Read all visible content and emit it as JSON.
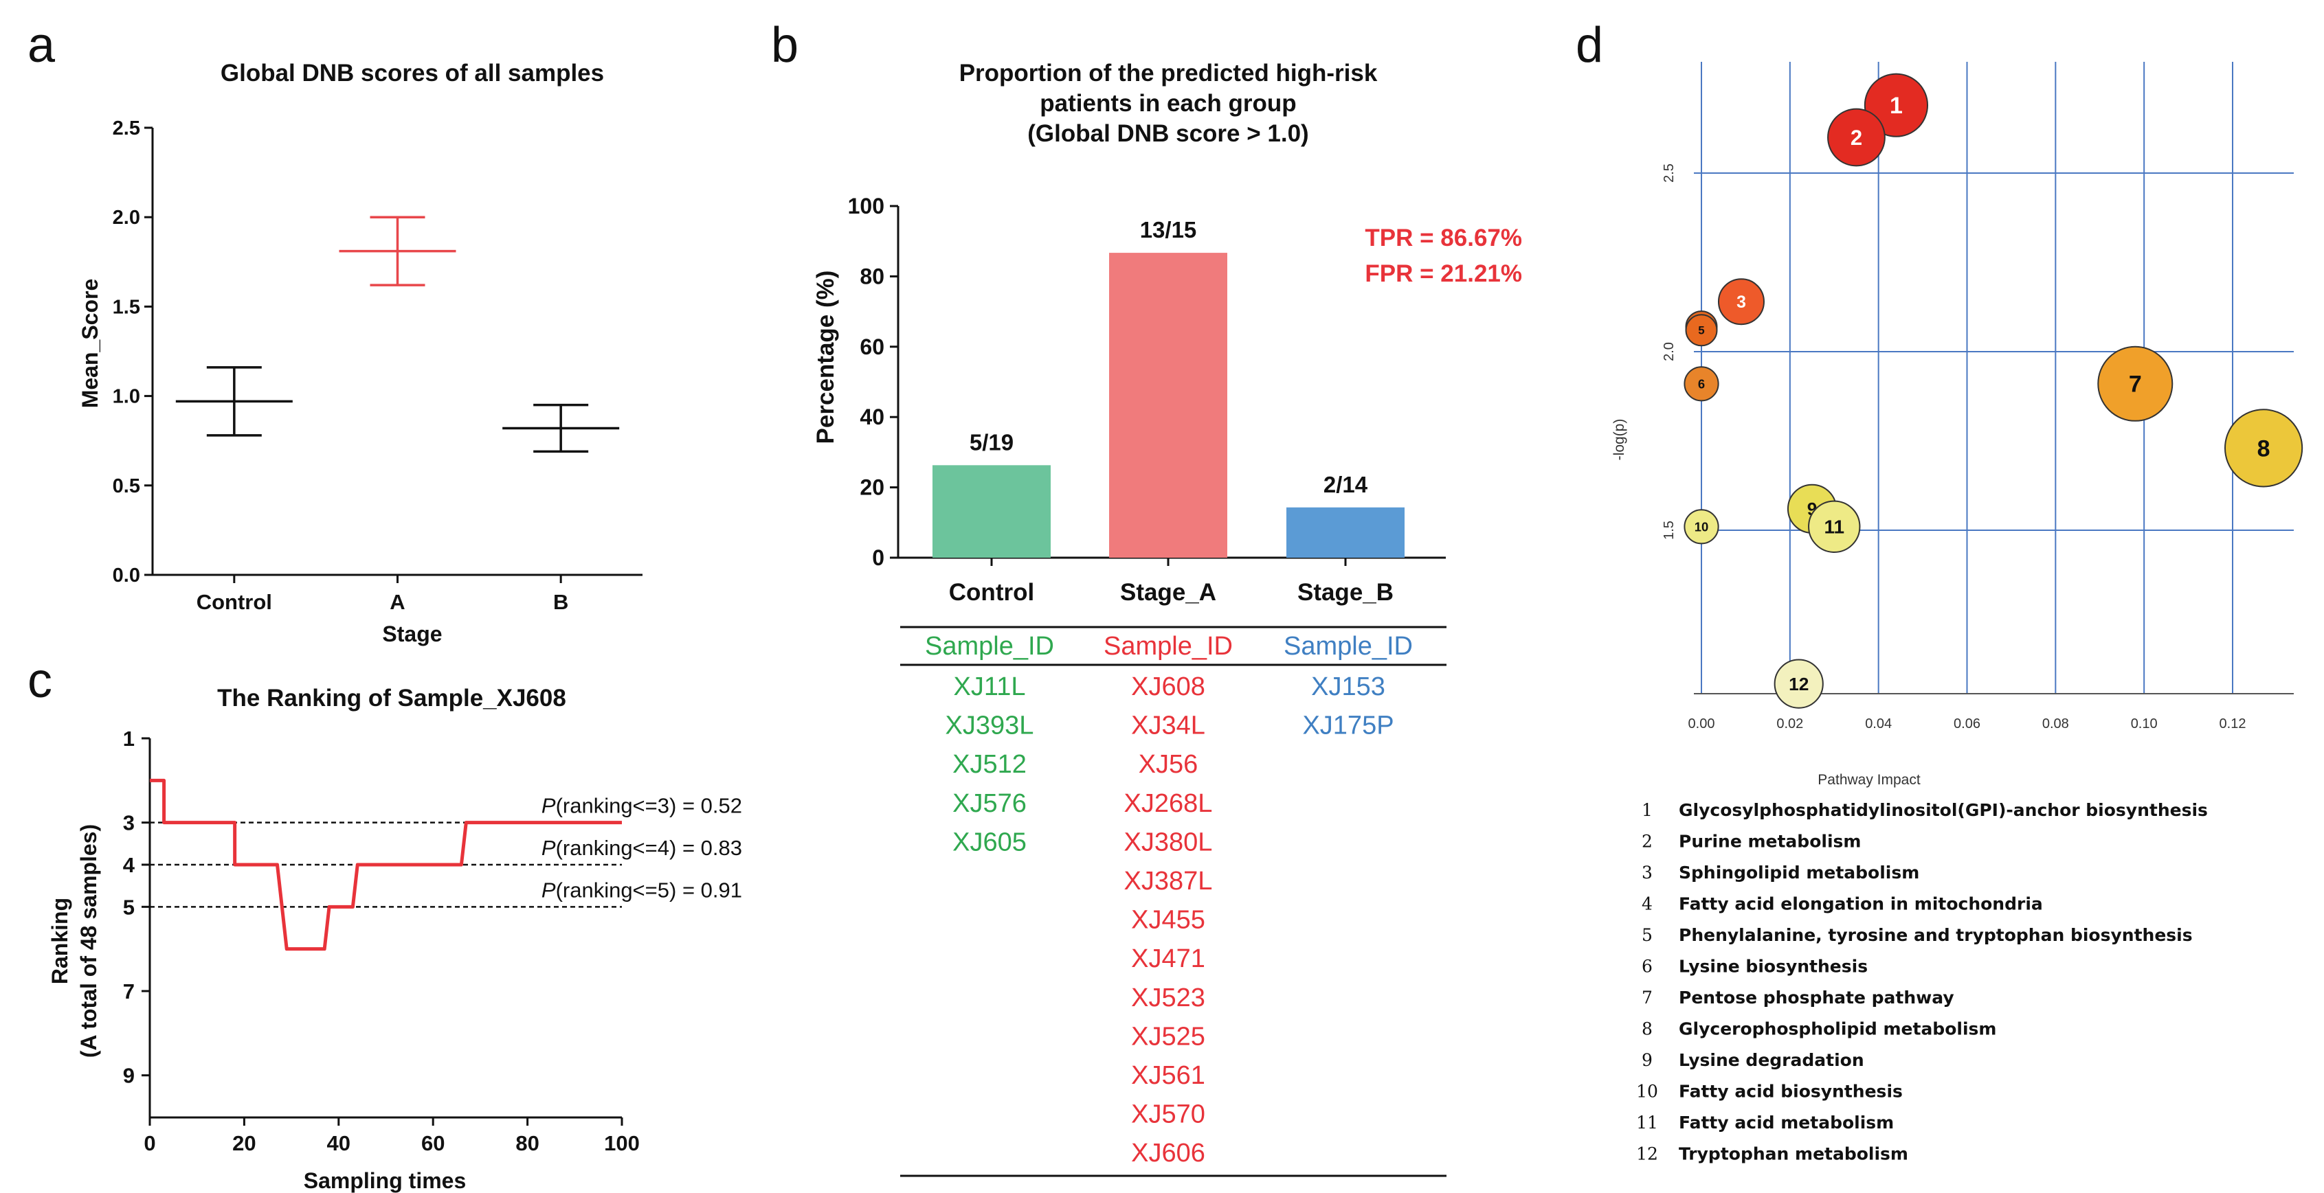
{
  "panel_labels": {
    "a": "a",
    "b": "b",
    "c": "c",
    "d": "d"
  },
  "chart_data": [
    {
      "id": "a",
      "type": "scatter",
      "title": "Global DNB scores of all samples",
      "xlabel": "Stage",
      "ylabel": "Mean_Score",
      "categories": [
        "Control",
        "A",
        "B"
      ],
      "ylim": [
        0,
        2.5
      ],
      "yticks": [
        "0.0",
        "0.5",
        "1.0",
        "1.5",
        "2.0",
        "2.5"
      ],
      "series": [
        {
          "name": "Control",
          "mean": 0.97,
          "low": 0.78,
          "high": 1.16,
          "color": "#111111"
        },
        {
          "name": "A",
          "mean": 1.81,
          "low": 1.62,
          "high": 2.0,
          "color": "#e8474b"
        },
        {
          "name": "B",
          "mean": 0.82,
          "low": 0.69,
          "high": 0.95,
          "color": "#111111"
        }
      ]
    },
    {
      "id": "b",
      "type": "bar",
      "title": [
        "Proportion of the predicted high-risk",
        "patients in each group",
        "(Global DNB score > 1.0)"
      ],
      "ylabel": "Percentage (%)",
      "categories": [
        "Control",
        "Stage_A",
        "Stage_B"
      ],
      "values": [
        26.3,
        86.7,
        14.3
      ],
      "labels": [
        "5/19",
        "13/15",
        "2/14"
      ],
      "colors": [
        "#6cc49c",
        "#f07b7c",
        "#5b9bd5"
      ],
      "ylim": [
        0,
        100
      ],
      "yticks": [
        "0",
        "20",
        "40",
        "60",
        "80",
        "100"
      ],
      "metrics": [
        "TPR = 86.67%",
        "FPR = 21.21%"
      ],
      "metric_color": "#e8333a"
    },
    {
      "id": "c",
      "type": "line",
      "title": "The Ranking of Sample_XJ608",
      "xlabel": "Sampling times",
      "ylabel": [
        "Ranking",
        "(A total of 48 samples)"
      ],
      "xlim": [
        0,
        100
      ],
      "xticks": [
        "0",
        "20",
        "40",
        "60",
        "80",
        "100"
      ],
      "ylim": [
        1,
        10
      ],
      "yticks": [
        "1",
        "3",
        "4",
        "5",
        "7",
        "9"
      ],
      "x": [
        0,
        3,
        3,
        18,
        18,
        27,
        28,
        29,
        37,
        38,
        43,
        44,
        66,
        67,
        100
      ],
      "y": [
        2,
        2,
        3,
        3,
        4,
        4,
        5,
        6,
        6,
        5,
        5,
        4,
        4,
        3,
        3
      ],
      "line_color": "#e8333a",
      "thresholds": [
        {
          "y": 3,
          "p": "P",
          "label": "(ranking<=3) = 0.52"
        },
        {
          "y": 4,
          "p": "P",
          "label": "(ranking<=4) = 0.83"
        },
        {
          "y": 5,
          "p": "P",
          "label": "(ranking<=5) = 0.91"
        }
      ]
    },
    {
      "id": "d",
      "type": "scatter",
      "xlabel": "Pathway Impact",
      "ylabel": "-log(p)",
      "xlim": [
        0,
        0.13
      ],
      "xticks": [
        "0.00",
        "0.02",
        "0.04",
        "0.06",
        "0.08",
        "0.10",
        "0.12"
      ],
      "ylim": [
        1.0,
        2.85
      ],
      "yticks": [
        "1.5",
        "2.0",
        "2.5"
      ],
      "points": [
        {
          "id": "1",
          "x": 0.044,
          "y": 2.69,
          "r": 0.8,
          "color": "#e32b22"
        },
        {
          "id": "2",
          "x": 0.035,
          "y": 2.6,
          "r": 0.7,
          "color": "#e32b22"
        },
        {
          "id": "3",
          "x": 0.009,
          "y": 2.14,
          "r": 0.5,
          "color": "#ee5a2a"
        },
        {
          "id": "4",
          "x": 0.0,
          "y": 2.07,
          "r": 0.25,
          "color": "#e8691f"
        },
        {
          "id": "5",
          "x": 0.0,
          "y": 2.06,
          "r": 0.25,
          "color": "#e8691f"
        },
        {
          "id": "6",
          "x": 0.0,
          "y": 1.91,
          "r": 0.3,
          "color": "#e8842a"
        },
        {
          "id": "7",
          "x": 0.098,
          "y": 1.91,
          "r": 1.0,
          "color": "#f0a02a"
        },
        {
          "id": "8",
          "x": 0.127,
          "y": 1.73,
          "r": 1.05,
          "color": "#ecc73a"
        },
        {
          "id": "9",
          "x": 0.025,
          "y": 1.56,
          "r": 0.55,
          "color": "#e8dd56"
        },
        {
          "id": "10",
          "x": 0.0,
          "y": 1.51,
          "r": 0.3,
          "color": "#eeea86"
        },
        {
          "id": "11",
          "x": 0.03,
          "y": 1.51,
          "r": 0.6,
          "color": "#eeea86"
        },
        {
          "id": "12",
          "x": 0.022,
          "y": 1.07,
          "r": 0.55,
          "color": "#f3f1be"
        }
      ],
      "legend": [
        {
          "num": "1",
          "name": "Glycosylphosphatidylinositol(GPI)-anchor  biosynthesis"
        },
        {
          "num": "2",
          "name": "Purine metabolism"
        },
        {
          "num": "3",
          "name": "Sphingolipid metabolism"
        },
        {
          "num": "4",
          "name": "Fatty acid elongation in mitochondria"
        },
        {
          "num": "5",
          "name": "Phenylalanine,  tyrosine and tryptophan biosynthesis"
        },
        {
          "num": "6",
          "name": "Lysine biosynthesis"
        },
        {
          "num": "7",
          "name": "Pentose phosphate pathway"
        },
        {
          "num": "8",
          "name": "Glycerophospholipid  metabolism"
        },
        {
          "num": "9",
          "name": "Lysine degradation"
        },
        {
          "num": "10",
          "name": "Fatty acid biosynthesis"
        },
        {
          "num": "11",
          "name": "Fatty acid metabolism"
        },
        {
          "num": "12",
          "name": "Tryptophan metabolism"
        }
      ]
    }
  ],
  "sample_table": {
    "columns": [
      {
        "header": "Sample_ID",
        "color": "#2fa84f",
        "ids": [
          "XJ11L",
          "XJ393L",
          "XJ512",
          "XJ576",
          "XJ605"
        ]
      },
      {
        "header": "Sample_ID",
        "color": "#e8333a",
        "ids": [
          "XJ608",
          "XJ34L",
          "XJ56",
          "XJ268L",
          "XJ380L",
          "XJ387L",
          "XJ455",
          "XJ471",
          "XJ523",
          "XJ525",
          "XJ561",
          "XJ570",
          "XJ606"
        ]
      },
      {
        "header": "Sample_ID",
        "color": "#3f7fc2",
        "ids": [
          "XJ153",
          "XJ175P"
        ]
      }
    ]
  }
}
